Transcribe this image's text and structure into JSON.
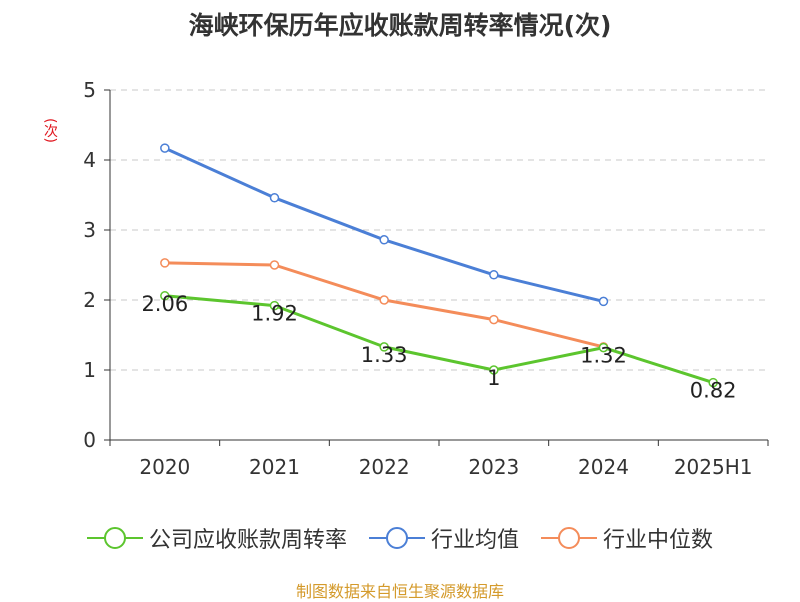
{
  "title": "海峡环保历年应收账款周转率情况(次)",
  "source": "制图数据来自恒生聚源数据库",
  "chart_data": {
    "type": "line",
    "title": "海峡环保历年应收账款周转率情况(次)",
    "ylabel": "(次)",
    "xlabel": "",
    "categories": [
      "2020",
      "2021",
      "2022",
      "2023",
      "2024",
      "2025H1"
    ],
    "ylim": [
      0,
      5
    ],
    "yticks": [
      0,
      1,
      2,
      3,
      4,
      5
    ],
    "grid": true,
    "legend_position": "bottom",
    "series": [
      {
        "name": "公司应收账款周转率",
        "color": "#5cc52e",
        "values": [
          2.06,
          1.92,
          1.33,
          1,
          1.32,
          0.82
        ],
        "labels": [
          "2.06",
          "1.92",
          "1.33",
          "1",
          "1.32",
          "0.82"
        ]
      },
      {
        "name": "行业均值",
        "color": "#4b7fd6",
        "values": [
          4.17,
          3.46,
          2.86,
          2.36,
          1.98,
          null
        ]
      },
      {
        "name": "行业中位数",
        "color": "#f48c5a",
        "values": [
          2.53,
          2.5,
          2.0,
          1.72,
          1.33,
          null
        ]
      }
    ]
  }
}
